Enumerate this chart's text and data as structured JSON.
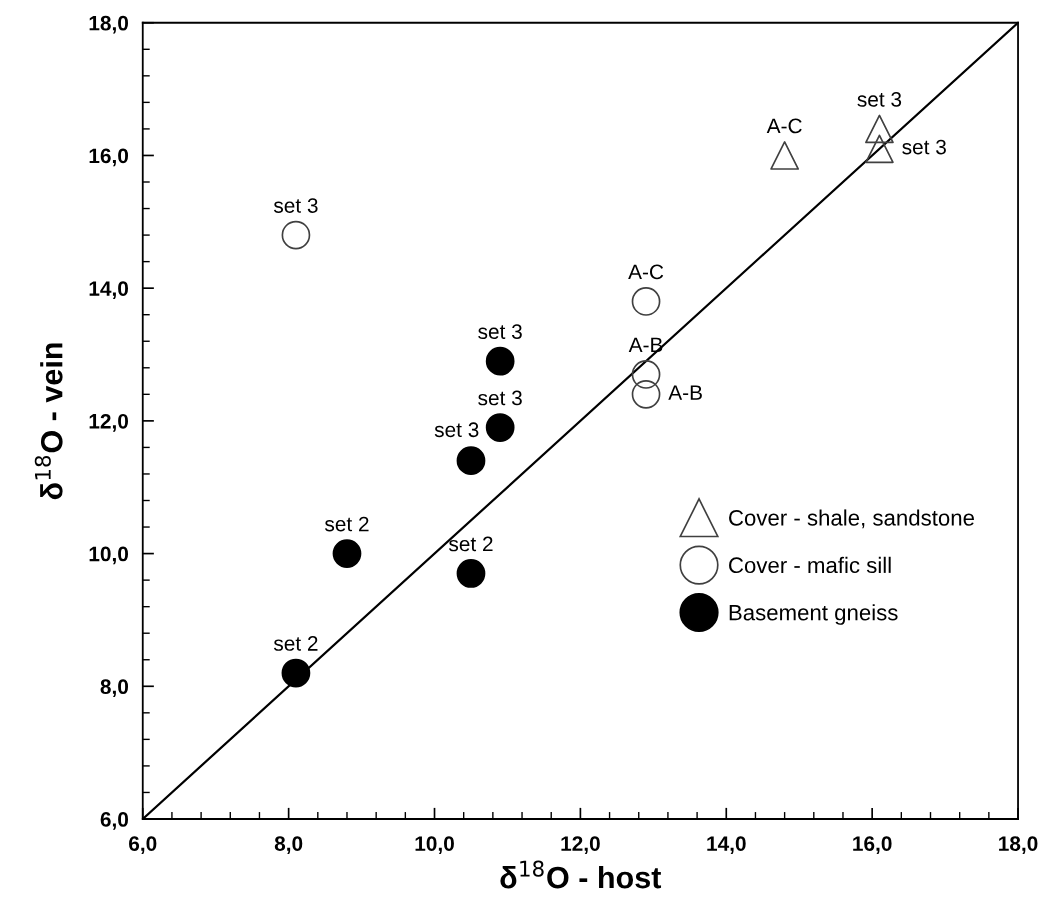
{
  "chart_data": {
    "type": "scatter",
    "xlabel": "δ$^{18}$O - host",
    "ylabel": "δ$^{18}$O - vein",
    "xlim": [
      6,
      18
    ],
    "ylim": [
      6,
      18
    ],
    "xticks": [
      {
        "value": 6,
        "label": "6,0"
      },
      {
        "value": 6.4,
        "label": null
      },
      {
        "value": 6.8,
        "label": null
      },
      {
        "value": 7.2,
        "label": null
      },
      {
        "value": 7.6,
        "label": null
      },
      {
        "value": 8,
        "label": "8,0"
      },
      {
        "value": 8.4,
        "label": null
      },
      {
        "value": 8.8,
        "label": null
      },
      {
        "value": 9.2,
        "label": null
      },
      {
        "value": 9.6,
        "label": null
      },
      {
        "value": 10,
        "label": "10,0"
      },
      {
        "value": 10.4,
        "label": null
      },
      {
        "value": 10.8,
        "label": null
      },
      {
        "value": 11.2,
        "label": null
      },
      {
        "value": 11.6,
        "label": null
      },
      {
        "value": 12,
        "label": "12,0"
      },
      {
        "value": 12.4,
        "label": null
      },
      {
        "value": 12.8,
        "label": null
      },
      {
        "value": 13.2,
        "label": null
      },
      {
        "value": 13.6,
        "label": null
      },
      {
        "value": 14,
        "label": "14,0"
      },
      {
        "value": 14.4,
        "label": null
      },
      {
        "value": 14.8,
        "label": null
      },
      {
        "value": 15.2,
        "label": null
      },
      {
        "value": 15.6,
        "label": null
      },
      {
        "value": 16,
        "label": "16,0"
      },
      {
        "value": 16.4,
        "label": null
      },
      {
        "value": 16.8,
        "label": null
      },
      {
        "value": 17.2,
        "label": null
      },
      {
        "value": 17.6,
        "label": null
      },
      {
        "value": 18,
        "label": "18,0"
      }
    ],
    "yticks": [
      {
        "value": 6,
        "label": "6,0"
      },
      {
        "value": 6.4,
        "label": null
      },
      {
        "value": 6.8,
        "label": null
      },
      {
        "value": 7.2,
        "label": null
      },
      {
        "value": 7.6,
        "label": null
      },
      {
        "value": 8,
        "label": "8,0"
      },
      {
        "value": 8.4,
        "label": null
      },
      {
        "value": 8.8,
        "label": null
      },
      {
        "value": 9.2,
        "label": null
      },
      {
        "value": 9.6,
        "label": null
      },
      {
        "value": 10,
        "label": "10,0"
      },
      {
        "value": 10.4,
        "label": null
      },
      {
        "value": 10.8,
        "label": null
      },
      {
        "value": 11.2,
        "label": null
      },
      {
        "value": 11.6,
        "label": null
      },
      {
        "value": 12,
        "label": "12,0"
      },
      {
        "value": 12.4,
        "label": null
      },
      {
        "value": 12.8,
        "label": null
      },
      {
        "value": 13.2,
        "label": null
      },
      {
        "value": 13.6,
        "label": null
      },
      {
        "value": 14,
        "label": "14,0"
      },
      {
        "value": 14.4,
        "label": null
      },
      {
        "value": 14.8,
        "label": null
      },
      {
        "value": 15.2,
        "label": null
      },
      {
        "value": 15.6,
        "label": null
      },
      {
        "value": 16,
        "label": "16,0"
      },
      {
        "value": 16.4,
        "label": null
      },
      {
        "value": 16.8,
        "label": null
      },
      {
        "value": 17.2,
        "label": null
      },
      {
        "value": 17.6,
        "label": null
      },
      {
        "value": 18,
        "label": "18,0"
      }
    ],
    "grid": false,
    "legend": "bottom right",
    "series": [
      {
        "type": "line",
        "color": "#000000",
        "x": [
          6,
          18
        ],
        "values": [
          6,
          18
        ],
        "marker": "none"
      },
      {
        "name": "Cover - shale, sandstone",
        "color": "#404040",
        "marker": "triangle",
        "x": [
          14.8,
          16.1,
          16.1
        ],
        "values": [
          16.0,
          16.4,
          16.1
        ],
        "value_labels": [
          "A-C",
          "set 3",
          "set 3"
        ]
      },
      {
        "name": "Cover - mafic sill",
        "color": "#404040",
        "marker": "circle",
        "x": [
          8.1,
          12.9,
          12.9,
          12.9
        ],
        "values": [
          14.8,
          13.8,
          12.7,
          12.4
        ],
        "value_labels": [
          "set 3",
          "A-C",
          "A-B",
          "A-B"
        ]
      },
      {
        "name": "Basement gneiss",
        "color": "#000000",
        "marker": "circle",
        "x": [
          10.9,
          10.9,
          10.5,
          8.8,
          10.5,
          8.1
        ],
        "values": [
          12.9,
          11.9,
          11.4,
          10.0,
          9.7,
          8.2
        ],
        "value_labels": [
          "set 3",
          "set 3",
          "set 3",
          "set 2",
          "set 2",
          "set 2"
        ]
      }
    ]
  }
}
